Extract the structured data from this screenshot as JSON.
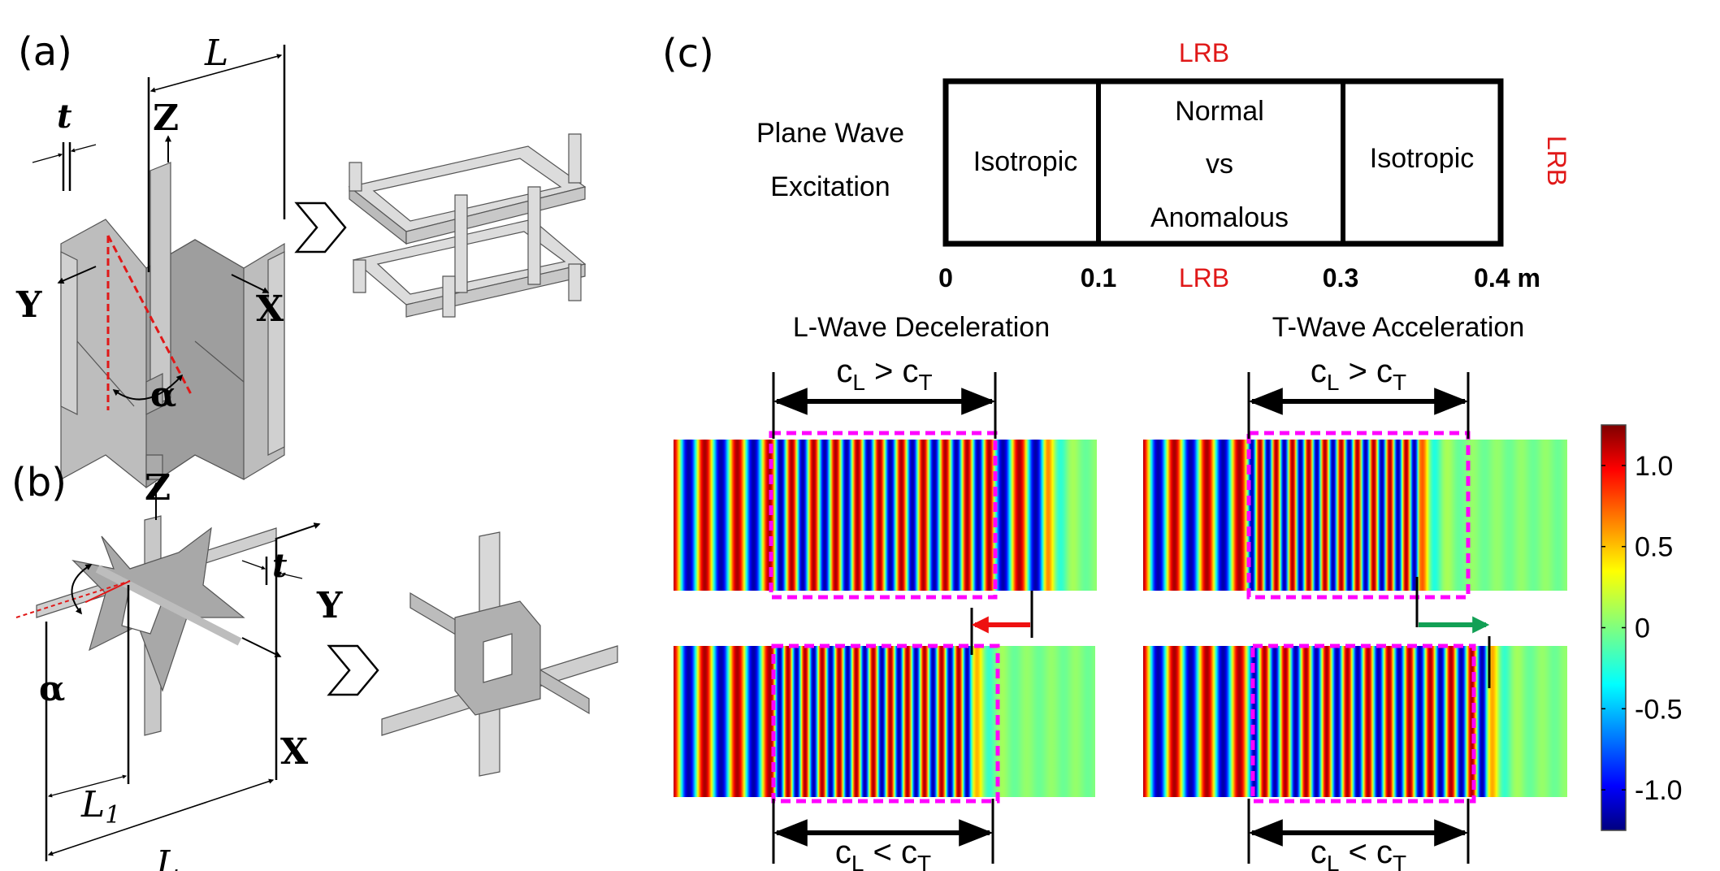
{
  "panel_a": {
    "label": "(a)",
    "t": "t",
    "L": "L",
    "Z": "Z",
    "Y": "Y",
    "X": "X",
    "alpha": "α"
  },
  "panel_b": {
    "label": "(b)",
    "t": "t",
    "L": "L",
    "L1": "L",
    "L1_sub": "1",
    "Z": "Z",
    "Y": "Y",
    "X": "X",
    "alpha": "α"
  },
  "panel_c": {
    "label": "(c)",
    "excitation_line1": "Plane Wave",
    "excitation_line2": "Excitation",
    "lrb_top": "LRB",
    "lrb_right": "LRB",
    "lrb_bottom": "LRB",
    "region_left": "Isotropic",
    "region_mid_line1": "Normal",
    "region_mid_line2": "vs",
    "region_mid_line3": "Anomalous",
    "region_right": "Isotropic",
    "ticks": [
      "0",
      "0.1",
      "0.3",
      "0.4 m"
    ],
    "title_left": "L-Wave Deceleration",
    "title_right": "T-Wave Acceleration",
    "cmp_gt": {
      "c": "c",
      "L": "L",
      "op": ">",
      "T": "T"
    },
    "cmp_lt": {
      "c": "c",
      "L": "L",
      "op": "<",
      "T": "T"
    },
    "colors": {
      "box": "#ff00ff",
      "decel_arrow": "#ee1111",
      "accel_arrow": "#12a055",
      "lrb": "#e01818"
    }
  },
  "colorbar": {
    "colormap": "jet",
    "range": [
      -1.25,
      1.25
    ],
    "ticks": [
      "1.0",
      "0.5",
      "0",
      "-0.5",
      "-1.0"
    ]
  }
}
